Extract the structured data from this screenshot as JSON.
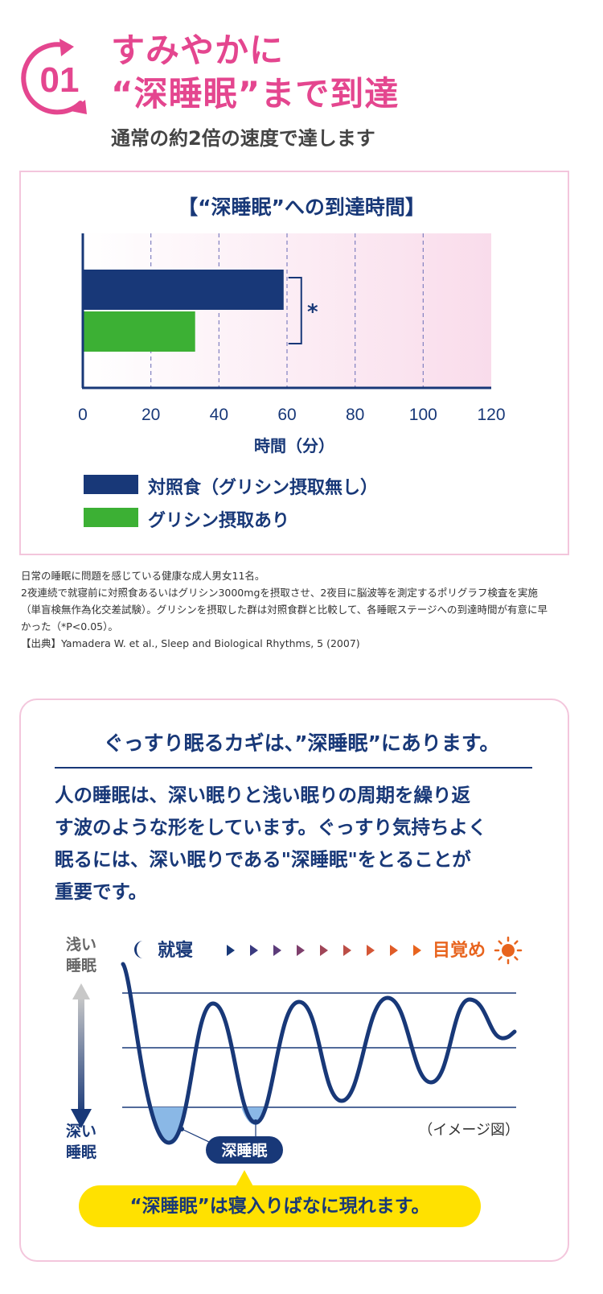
{
  "header": {
    "step_number": "01",
    "headline_line1": "すみやかに",
    "headline_line2": "“深睡眠”まで到達",
    "subheadline": "通常の約2倍の速度で達します"
  },
  "chart_data": {
    "type": "bar",
    "orientation": "horizontal",
    "title": "【“深睡眠”への到達時間】",
    "xlabel": "時間（分）",
    "ylabel": "",
    "xlim": [
      0,
      120
    ],
    "x_ticks": [
      0,
      20,
      40,
      60,
      80,
      100,
      120
    ],
    "grid": "vertical dashed",
    "significance_marker": "*",
    "series": [
      {
        "name": "対照食（グリシン摂取無し）",
        "value": 59,
        "color": "#183878"
      },
      {
        "name": "グリシン摂取あり",
        "value": 33,
        "color": "#3cb034"
      }
    ],
    "legend_position": "bottom-left"
  },
  "footnote": {
    "lines": [
      "日常の睡眠に問題を感じている健康な成人男女11名。",
      "2夜連続で就寝前に対照食あるいはグリシン3000mgを摂取させ、2夜目に脳波等を測定するポリグラフ検査を実施",
      "（単盲検無作為化交差試験）。グリシンを摂取した群は対照食群と比較して、各睡眠ステージへの到達時間が有意に早",
      "かった（*P<0.05）。",
      "【出典】Yamadera W. et al., Sleep and Biological Rhythms, 5 (2007)"
    ]
  },
  "info": {
    "heading": "ぐっすり眠るカギは、”深睡眠”にあります。",
    "body_lines": [
      "人の睡眠は、深い眠りと浅い眠りの周期を繰り返",
      "す波のような形をしています。ぐっすり気持ちよく",
      "眠るには、深い眠りである\"深睡眠\"をとることが",
      "重要です。"
    ]
  },
  "sleep_diagram": {
    "shallow_label_1": "浅い",
    "shallow_label_2": "睡眠",
    "deep_label_1": "深い",
    "deep_label_2": "睡眠",
    "bedtime_label": "就寝",
    "wake_label": "目覚め",
    "image_note": "（イメージ図）",
    "deep_sleep_badge": "深睡眠",
    "callout": "“深睡眠”は寝入りばなに現れます。",
    "colors": {
      "navy": "#183878",
      "orange": "#e8641e",
      "deep_fill": "#8ab8e6"
    }
  },
  "colors": {
    "pink": "#e4468f",
    "pink_border": "#f3c6dc",
    "navy": "#183878",
    "green": "#3cb034",
    "yellow": "#ffe100"
  }
}
